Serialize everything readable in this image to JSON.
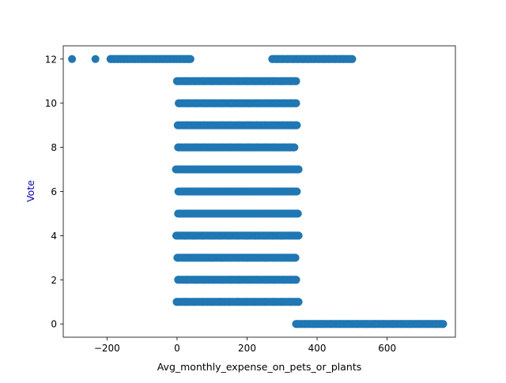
{
  "chart_data": {
    "type": "scatter",
    "title": "",
    "xlabel": "Avg_monthly_expense_on_pets_or_plants",
    "ylabel": "Vote",
    "xlim": [
      -325,
      795
    ],
    "ylim": [
      -0.6,
      12.6
    ],
    "x_ticks": [
      -200,
      0,
      200,
      400,
      600,
      800
    ],
    "x_tick_labels": [
      "−200",
      "0",
      "200",
      "400",
      "600",
      "800"
    ],
    "y_ticks": [
      0,
      2,
      4,
      6,
      8,
      10,
      12
    ],
    "y_tick_labels": [
      "0",
      "2",
      "4",
      "6",
      "8",
      "10",
      "12"
    ],
    "grid": false,
    "legend": "none",
    "colors": {
      "marker": "#1f77b4",
      "ylabel": "#0000cc",
      "axis": "#000000"
    },
    "series": [
      {
        "points": [
          {
            "x": -300,
            "y": 12
          },
          {
            "x": -233,
            "y": 12
          },
          {
            "x": -190,
            "y": 12
          },
          {
            "x": -180,
            "y": 12
          },
          {
            "x": -170,
            "y": 12
          },
          {
            "x": -160,
            "y": 12
          },
          {
            "x": -150,
            "y": 12
          },
          {
            "x": -140,
            "y": 12
          },
          {
            "x": -130,
            "y": 12
          },
          {
            "x": -120,
            "y": 12
          },
          {
            "x": -110,
            "y": 12
          },
          {
            "x": -100,
            "y": 12
          },
          {
            "x": -90,
            "y": 12
          },
          {
            "x": -80,
            "y": 12
          },
          {
            "x": -70,
            "y": 12
          },
          {
            "x": -60,
            "y": 12
          },
          {
            "x": -50,
            "y": 12
          },
          {
            "x": -40,
            "y": 12
          },
          {
            "x": -30,
            "y": 12
          },
          {
            "x": -20,
            "y": 12
          },
          {
            "x": -10,
            "y": 12
          },
          {
            "x": 0,
            "y": 12
          },
          {
            "x": 10,
            "y": 12
          },
          {
            "x": 20,
            "y": 12
          },
          {
            "x": 30,
            "y": 12
          },
          {
            "x": 38,
            "y": 12
          },
          {
            "x": 272,
            "y": 12
          },
          {
            "x": 285,
            "y": 12
          },
          {
            "x": 300,
            "y": 12
          },
          {
            "x": 315,
            "y": 12
          },
          {
            "x": 330,
            "y": 12
          },
          {
            "x": 345,
            "y": 12
          },
          {
            "x": 360,
            "y": 12
          },
          {
            "x": 375,
            "y": 12
          },
          {
            "x": 390,
            "y": 12
          },
          {
            "x": 405,
            "y": 12
          },
          {
            "x": 420,
            "y": 12
          },
          {
            "x": 435,
            "y": 12
          },
          {
            "x": 450,
            "y": 12
          },
          {
            "x": 465,
            "y": 12
          },
          {
            "x": 475,
            "y": 12
          },
          {
            "x": 500,
            "y": 12
          },
          {
            "x": 0,
            "y": 11
          },
          {
            "x": 25,
            "y": 11
          },
          {
            "x": 50,
            "y": 11
          },
          {
            "x": 75,
            "y": 11
          },
          {
            "x": 100,
            "y": 11
          },
          {
            "x": 125,
            "y": 11
          },
          {
            "x": 150,
            "y": 11
          },
          {
            "x": 175,
            "y": 11
          },
          {
            "x": 200,
            "y": 11
          },
          {
            "x": 225,
            "y": 11
          },
          {
            "x": 250,
            "y": 11
          },
          {
            "x": 275,
            "y": 11
          },
          {
            "x": 300,
            "y": 11
          },
          {
            "x": 325,
            "y": 11
          },
          {
            "x": 340,
            "y": 11
          },
          {
            "x": 5,
            "y": 10
          },
          {
            "x": 30,
            "y": 10
          },
          {
            "x": 55,
            "y": 10
          },
          {
            "x": 80,
            "y": 10
          },
          {
            "x": 105,
            "y": 10
          },
          {
            "x": 130,
            "y": 10
          },
          {
            "x": 155,
            "y": 10
          },
          {
            "x": 180,
            "y": 10
          },
          {
            "x": 205,
            "y": 10
          },
          {
            "x": 230,
            "y": 10
          },
          {
            "x": 255,
            "y": 10
          },
          {
            "x": 280,
            "y": 10
          },
          {
            "x": 305,
            "y": 10
          },
          {
            "x": 325,
            "y": 10
          },
          {
            "x": 340,
            "y": 10
          },
          {
            "x": 2,
            "y": 9
          },
          {
            "x": 27,
            "y": 9
          },
          {
            "x": 52,
            "y": 9
          },
          {
            "x": 77,
            "y": 9
          },
          {
            "x": 102,
            "y": 9
          },
          {
            "x": 127,
            "y": 9
          },
          {
            "x": 152,
            "y": 9
          },
          {
            "x": 177,
            "y": 9
          },
          {
            "x": 202,
            "y": 9
          },
          {
            "x": 227,
            "y": 9
          },
          {
            "x": 252,
            "y": 9
          },
          {
            "x": 277,
            "y": 9
          },
          {
            "x": 302,
            "y": 9
          },
          {
            "x": 327,
            "y": 9
          },
          {
            "x": 342,
            "y": 9
          },
          {
            "x": 3,
            "y": 8
          },
          {
            "x": 28,
            "y": 8
          },
          {
            "x": 53,
            "y": 8
          },
          {
            "x": 78,
            "y": 8
          },
          {
            "x": 103,
            "y": 8
          },
          {
            "x": 128,
            "y": 8
          },
          {
            "x": 153,
            "y": 8
          },
          {
            "x": 178,
            "y": 8
          },
          {
            "x": 203,
            "y": 8
          },
          {
            "x": 228,
            "y": 8
          },
          {
            "x": 253,
            "y": 8
          },
          {
            "x": 278,
            "y": 8
          },
          {
            "x": 303,
            "y": 8
          },
          {
            "x": 323,
            "y": 8
          },
          {
            "x": 335,
            "y": 8
          },
          {
            "x": -3,
            "y": 7
          },
          {
            "x": 22,
            "y": 7
          },
          {
            "x": 47,
            "y": 7
          },
          {
            "x": 72,
            "y": 7
          },
          {
            "x": 97,
            "y": 7
          },
          {
            "x": 122,
            "y": 7
          },
          {
            "x": 147,
            "y": 7
          },
          {
            "x": 172,
            "y": 7
          },
          {
            "x": 197,
            "y": 7
          },
          {
            "x": 222,
            "y": 7
          },
          {
            "x": 247,
            "y": 7
          },
          {
            "x": 272,
            "y": 7
          },
          {
            "x": 297,
            "y": 7
          },
          {
            "x": 322,
            "y": 7
          },
          {
            "x": 347,
            "y": 7
          },
          {
            "x": 4,
            "y": 6
          },
          {
            "x": 29,
            "y": 6
          },
          {
            "x": 54,
            "y": 6
          },
          {
            "x": 79,
            "y": 6
          },
          {
            "x": 104,
            "y": 6
          },
          {
            "x": 129,
            "y": 6
          },
          {
            "x": 154,
            "y": 6
          },
          {
            "x": 179,
            "y": 6
          },
          {
            "x": 204,
            "y": 6
          },
          {
            "x": 229,
            "y": 6
          },
          {
            "x": 254,
            "y": 6
          },
          {
            "x": 279,
            "y": 6
          },
          {
            "x": 304,
            "y": 6
          },
          {
            "x": 325,
            "y": 6
          },
          {
            "x": 342,
            "y": 6
          },
          {
            "x": 3,
            "y": 5
          },
          {
            "x": 28,
            "y": 5
          },
          {
            "x": 53,
            "y": 5
          },
          {
            "x": 78,
            "y": 5
          },
          {
            "x": 103,
            "y": 5
          },
          {
            "x": 128,
            "y": 5
          },
          {
            "x": 153,
            "y": 5
          },
          {
            "x": 178,
            "y": 5
          },
          {
            "x": 203,
            "y": 5
          },
          {
            "x": 228,
            "y": 5
          },
          {
            "x": 253,
            "y": 5
          },
          {
            "x": 278,
            "y": 5
          },
          {
            "x": 303,
            "y": 5
          },
          {
            "x": 328,
            "y": 5
          },
          {
            "x": 345,
            "y": 5
          },
          {
            "x": -2,
            "y": 4
          },
          {
            "x": 23,
            "y": 4
          },
          {
            "x": 48,
            "y": 4
          },
          {
            "x": 73,
            "y": 4
          },
          {
            "x": 98,
            "y": 4
          },
          {
            "x": 123,
            "y": 4
          },
          {
            "x": 148,
            "y": 4
          },
          {
            "x": 173,
            "y": 4
          },
          {
            "x": 198,
            "y": 4
          },
          {
            "x": 223,
            "y": 4
          },
          {
            "x": 248,
            "y": 4
          },
          {
            "x": 273,
            "y": 4
          },
          {
            "x": 298,
            "y": 4
          },
          {
            "x": 323,
            "y": 4
          },
          {
            "x": 347,
            "y": 4
          },
          {
            "x": 1,
            "y": 3
          },
          {
            "x": 26,
            "y": 3
          },
          {
            "x": 51,
            "y": 3
          },
          {
            "x": 76,
            "y": 3
          },
          {
            "x": 101,
            "y": 3
          },
          {
            "x": 126,
            "y": 3
          },
          {
            "x": 151,
            "y": 3
          },
          {
            "x": 176,
            "y": 3
          },
          {
            "x": 201,
            "y": 3
          },
          {
            "x": 226,
            "y": 3
          },
          {
            "x": 251,
            "y": 3
          },
          {
            "x": 276,
            "y": 3
          },
          {
            "x": 301,
            "y": 3
          },
          {
            "x": 324,
            "y": 3
          },
          {
            "x": 338,
            "y": 3
          },
          {
            "x": 3,
            "y": 2
          },
          {
            "x": 28,
            "y": 2
          },
          {
            "x": 53,
            "y": 2
          },
          {
            "x": 78,
            "y": 2
          },
          {
            "x": 103,
            "y": 2
          },
          {
            "x": 128,
            "y": 2
          },
          {
            "x": 153,
            "y": 2
          },
          {
            "x": 178,
            "y": 2
          },
          {
            "x": 203,
            "y": 2
          },
          {
            "x": 228,
            "y": 2
          },
          {
            "x": 253,
            "y": 2
          },
          {
            "x": 278,
            "y": 2
          },
          {
            "x": 303,
            "y": 2
          },
          {
            "x": 325,
            "y": 2
          },
          {
            "x": 340,
            "y": 2
          },
          {
            "x": -1,
            "y": 1
          },
          {
            "x": 24,
            "y": 1
          },
          {
            "x": 49,
            "y": 1
          },
          {
            "x": 74,
            "y": 1
          },
          {
            "x": 99,
            "y": 1
          },
          {
            "x": 124,
            "y": 1
          },
          {
            "x": 149,
            "y": 1
          },
          {
            "x": 174,
            "y": 1
          },
          {
            "x": 199,
            "y": 1
          },
          {
            "x": 224,
            "y": 1
          },
          {
            "x": 249,
            "y": 1
          },
          {
            "x": 274,
            "y": 1
          },
          {
            "x": 299,
            "y": 1
          },
          {
            "x": 324,
            "y": 1
          },
          {
            "x": 347,
            "y": 1
          },
          {
            "x": 340,
            "y": 0
          },
          {
            "x": 365,
            "y": 0
          },
          {
            "x": 390,
            "y": 0
          },
          {
            "x": 415,
            "y": 0
          },
          {
            "x": 440,
            "y": 0
          },
          {
            "x": 465,
            "y": 0
          },
          {
            "x": 490,
            "y": 0
          },
          {
            "x": 515,
            "y": 0
          },
          {
            "x": 540,
            "y": 0
          },
          {
            "x": 565,
            "y": 0
          },
          {
            "x": 590,
            "y": 0
          },
          {
            "x": 615,
            "y": 0
          },
          {
            "x": 640,
            "y": 0
          },
          {
            "x": 665,
            "y": 0
          },
          {
            "x": 690,
            "y": 0
          },
          {
            "x": 715,
            "y": 0
          },
          {
            "x": 740,
            "y": 0
          },
          {
            "x": 760,
            "y": 0
          }
        ]
      }
    ]
  }
}
